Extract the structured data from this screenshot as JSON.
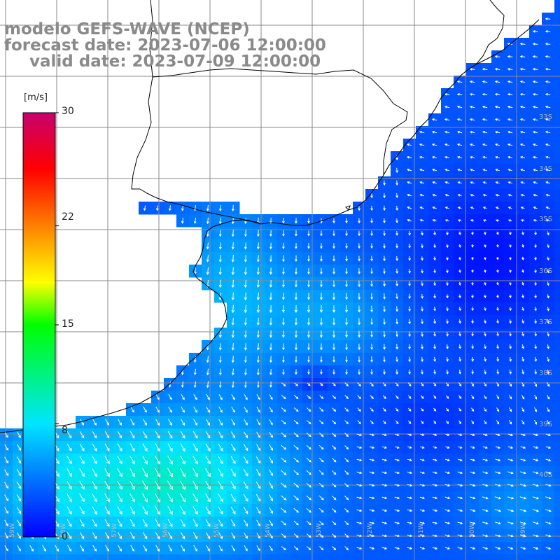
{
  "title": {
    "line1": "modelo GEFS-WAVE (NCEP)",
    "line2": "forecast date: 2023-07-06 12:00:00",
    "line3": "valid date: 2023-07-09 12:00:00"
  },
  "colorbar": {
    "unit": "[m/s]",
    "ticks": [
      "30",
      "22",
      "15",
      "8",
      "0"
    ],
    "range": [
      0,
      30
    ],
    "colors": [
      "#0000ff",
      "#00e5ff",
      "#00ff00",
      "#ffff00",
      "#ff8000",
      "#ff0000",
      "#c8006e"
    ]
  },
  "graticule": {
    "lat_labels": [
      "33S",
      "34S",
      "35S",
      "36S",
      "37S",
      "38S",
      "39S",
      "40S"
    ],
    "lon_labels": [
      "59W",
      "58W",
      "57W",
      "56W",
      "55W",
      "54W",
      "53W",
      "52W",
      "51W",
      "50W",
      "49W"
    ]
  },
  "field": {
    "variable": "wind speed and direction",
    "speed_range_mps": [
      0,
      11
    ],
    "fields_colors": {
      "land": "#ffffff",
      "coast": "#000000",
      "grid": "#808080",
      "arrows": "#ffffff"
    }
  }
}
